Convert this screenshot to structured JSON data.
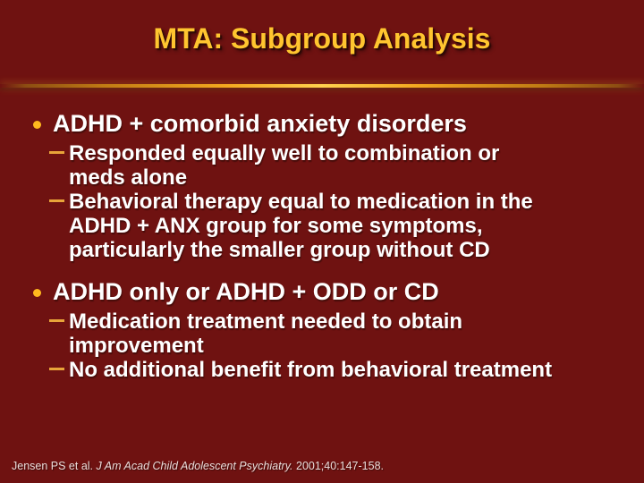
{
  "slide": {
    "title": "MTA: Subgroup Analysis",
    "bullets": [
      {
        "label": "ADHD + comorbid anxiety disorders",
        "subs": [
          [
            "Responded equally well to combination or",
            "meds alone"
          ],
          [
            "Behavioral therapy equal to medication in the",
            "ADHD + ANX group for some symptoms,",
            "particularly the smaller group without CD"
          ]
        ]
      },
      {
        "label": "ADHD only or ADHD + ODD or CD",
        "subs": [
          [
            "Medication treatment needed to obtain",
            "improvement"
          ],
          [
            "No additional benefit from behavioral treatment"
          ]
        ]
      }
    ],
    "citation": {
      "prefix": "Jensen PS et al. ",
      "journal_italic": "J Am Acad Child Adolescent Psychiatry.",
      "suffix": " 2001;40:147-158."
    },
    "colors": {
      "background": "#6F1211",
      "title_gold": "#FFC52F",
      "bullet_dot_gold": "#FFB91E",
      "dash_gold": "#E8A43A",
      "rule_center_gold": "#FFD14E",
      "body_text": "#FFFFFF",
      "citation_text": "#EBDCDA"
    }
  }
}
